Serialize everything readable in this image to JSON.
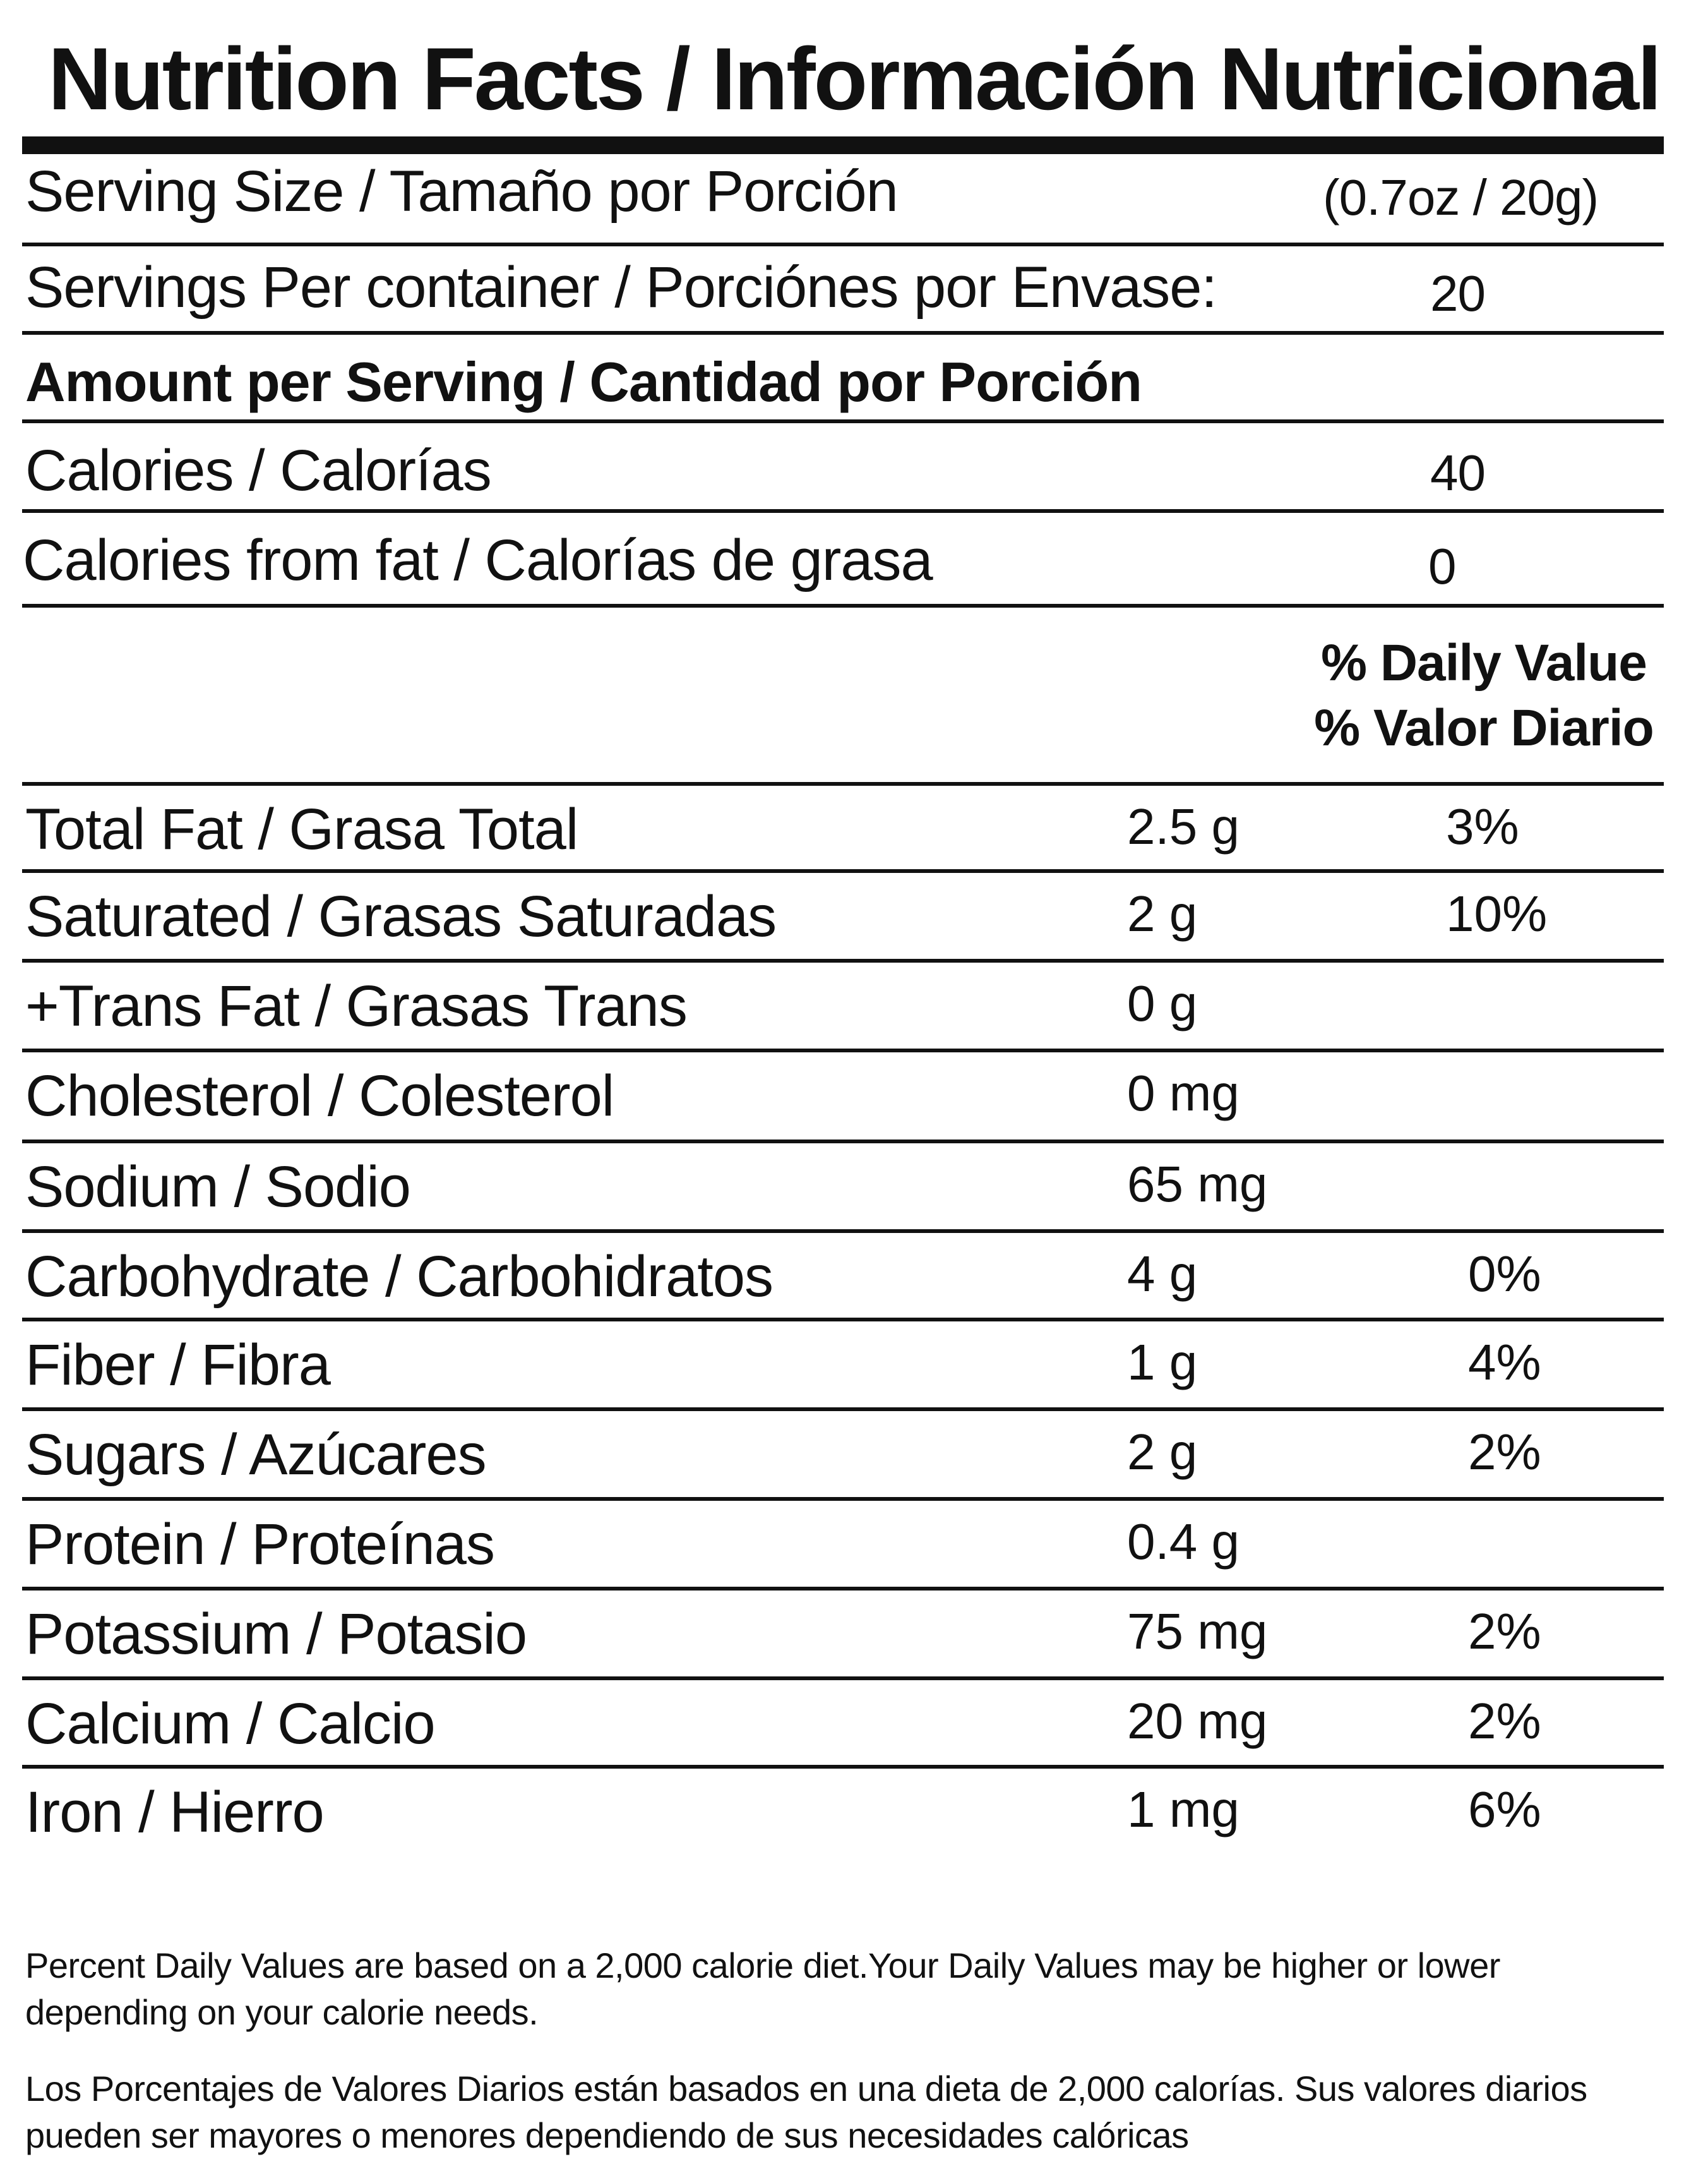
{
  "title": "Nutrition Facts / Información Nutricional",
  "serving_size": {
    "label": "Serving Size / Tamaño por Porción",
    "value": "(0.7oz / 20g)"
  },
  "servings_per_container": {
    "label": "Servings Per container / Porciónes por Envase:",
    "value": "20"
  },
  "amount_per_serving": "Amount per Serving / Cantidad por Porción",
  "calories": {
    "label": "Calories / Calorías",
    "value": "40"
  },
  "calories_from_fat": {
    "label": "Calories from fat / Calorías de grasa",
    "value": "0"
  },
  "daily_value_header": {
    "line1": "% Daily Value",
    "line2": "% Valor Diario"
  },
  "nutrients": [
    {
      "name": "Total Fat / Grasa Total",
      "amount": "2.5 g",
      "dv": "3%"
    },
    {
      "name": "Saturated / Grasas Saturadas",
      "amount": "2 g",
      "dv": "10%"
    },
    {
      "name": "+Trans Fat / Grasas Trans",
      "amount": "0 g",
      "dv": ""
    },
    {
      "name": "Cholesterol / Colesterol",
      "amount": "0 mg",
      "dv": ""
    },
    {
      "name": "Sodium / Sodio",
      "amount": "65 mg",
      "dv": ""
    },
    {
      "name": "Carbohydrate / Carbohidratos",
      "amount": "4 g",
      "dv": "0%"
    },
    {
      "name": "Fiber / Fibra",
      "amount": "1 g",
      "dv": "4%"
    },
    {
      "name": "Sugars / Azúcares",
      "amount": "2 g",
      "dv": "2%"
    },
    {
      "name": "Protein / Proteínas",
      "amount": "0.4 g",
      "dv": ""
    },
    {
      "name": "Potassium / Potasio",
      "amount": "75 mg",
      "dv": "2%"
    },
    {
      "name": "Calcium / Calcio",
      "amount": "20 mg",
      "dv": "2%"
    },
    {
      "name": "Iron / Hierro",
      "amount": "1 mg",
      "dv": "6%"
    }
  ],
  "footnote_en": "Percent Daily Values are based on a 2,000 calorie diet.Your Daily Values may be higher or lower depending on your calorie needs.",
  "footnote_es": "Los Porcentajes de Valores Diarios están basados en una dieta de 2,000 calorías. Sus valores diarios pueden ser mayores o menores dependiendo de sus necesidades calóricas"
}
